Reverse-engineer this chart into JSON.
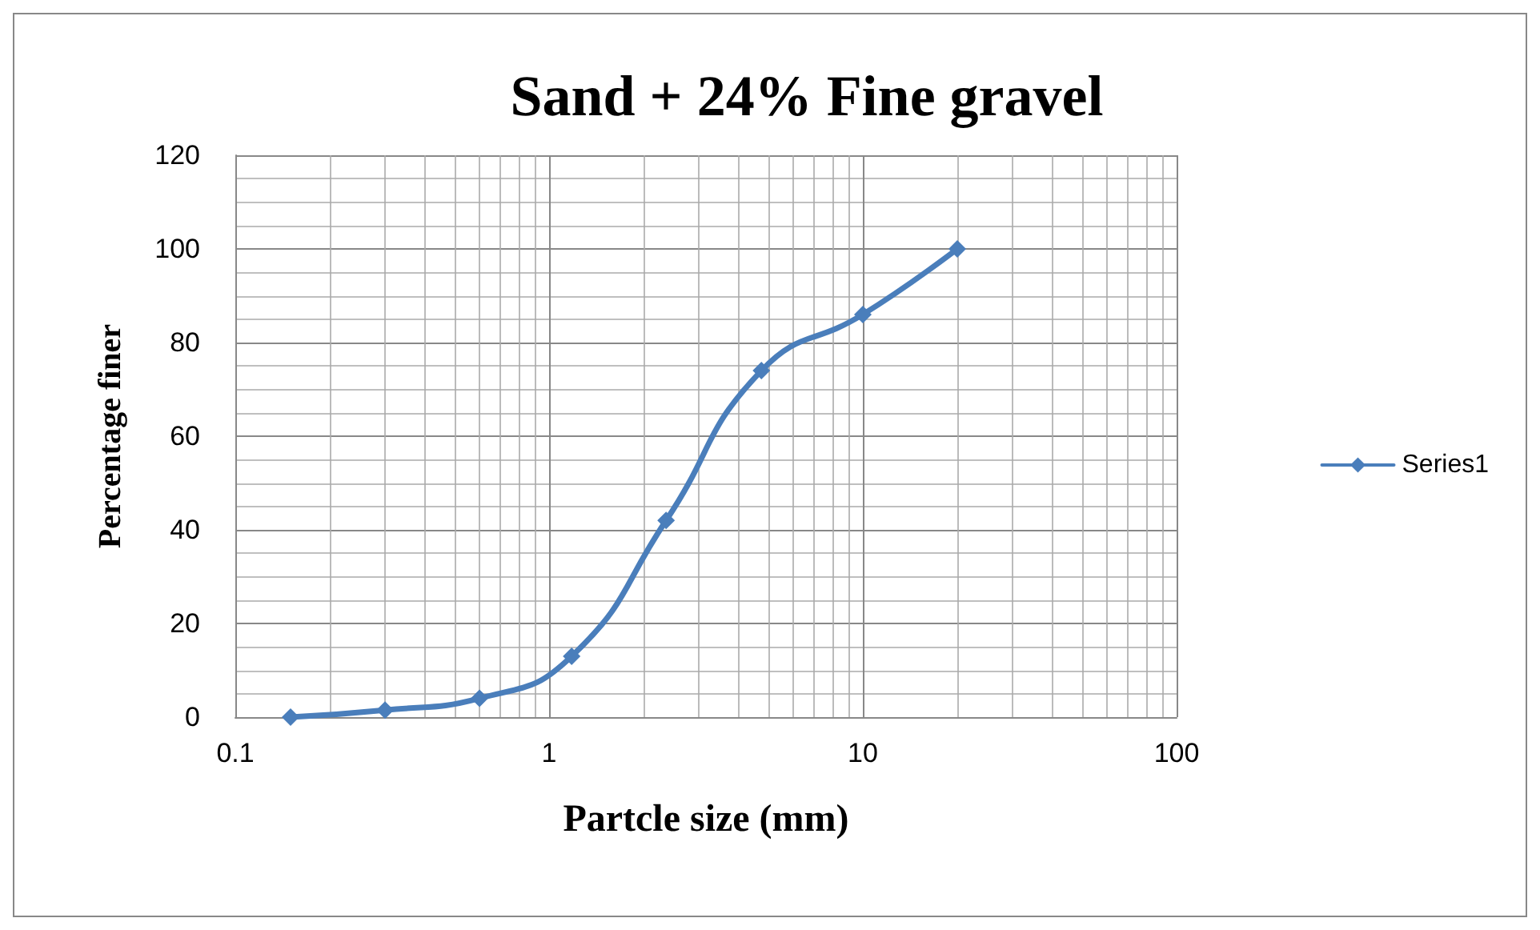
{
  "chart_data": {
    "type": "line",
    "title": "Sand + 24% Fine gravel",
    "xlabel": "Partcle size (mm)",
    "ylabel": "Percentage finer",
    "x": [
      0.15,
      0.3,
      0.6,
      1.18,
      2.36,
      4.75,
      10,
      20
    ],
    "series": [
      {
        "name": "Series1",
        "color": "#4a7ebb",
        "values": [
          0,
          1.5,
          4,
          13,
          42,
          74,
          86,
          100
        ]
      }
    ],
    "log": "x",
    "xlim": [
      0.1,
      100
    ],
    "xticks": [
      0.1,
      1,
      10,
      100
    ],
    "ylim": [
      0,
      120
    ],
    "yticks": [
      0,
      20,
      40,
      60,
      80,
      100,
      120
    ],
    "grid": true,
    "legend": "right",
    "marker": "diamond",
    "line_style": "solid"
  }
}
